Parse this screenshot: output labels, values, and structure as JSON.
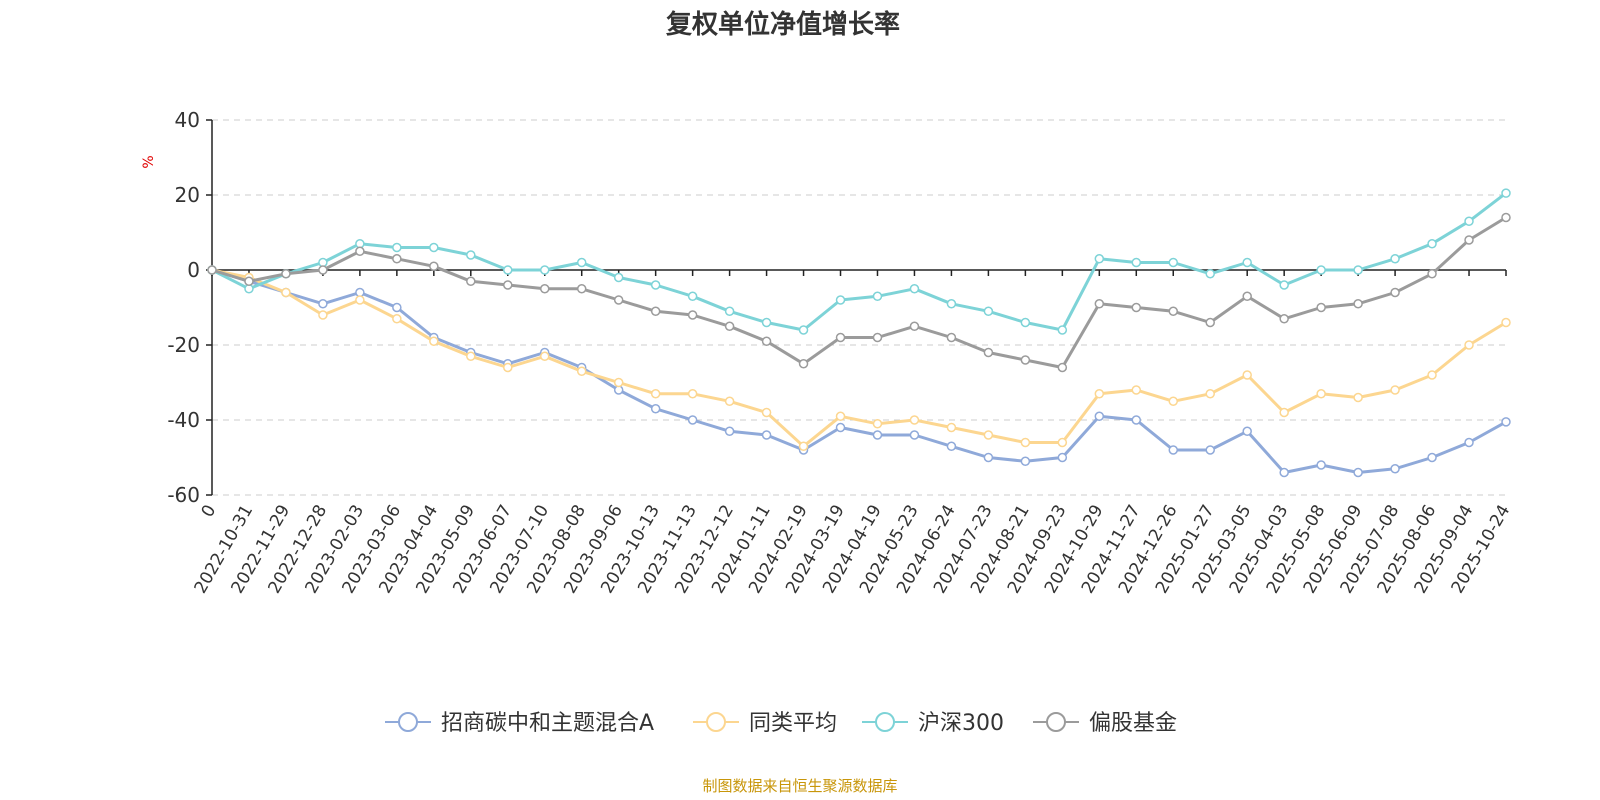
{
  "chart_data": {
    "type": "line",
    "title": "复权单位净值增长率",
    "ylabel": "%",
    "ylim": [
      -60,
      40
    ],
    "y_ticks": [
      "40",
      "20",
      "0",
      "-20",
      "-40",
      "-60"
    ],
    "x_tick_labels": [
      "0",
      "2022-10-31",
      "2022-11-29",
      "2022-12-28",
      "2023-02-03",
      "2023-03-06",
      "2023-04-04",
      "2023-05-09",
      "2023-06-07",
      "2023-07-10",
      "2023-08-08",
      "2023-09-06",
      "2023-10-13",
      "2023-11-13",
      "2023-12-12",
      "2024-01-11",
      "2024-02-19",
      "2024-03-19",
      "2024-04-19",
      "2024-05-23",
      "2024-06-24",
      "2024-07-23",
      "2024-08-21",
      "2024-09-23",
      "2024-10-29",
      "2024-11-27",
      "2024-12-26",
      "2025-01-27",
      "2025-03-05",
      "2025-04-03",
      "2025-05-08",
      "2025-06-09",
      "2025-07-08",
      "2025-08-06",
      "2025-09-04",
      "2025-10-24"
    ],
    "series": [
      {
        "name": "招商碳中和主题混合A",
        "color": "#8fa9d9",
        "values": [
          0,
          -3,
          -6,
          -9,
          -6,
          -10,
          -18,
          -22,
          -25,
          -22,
          -26,
          -32,
          -37,
          -40,
          -43,
          -44,
          -48,
          -42,
          -44,
          -44,
          -47,
          -50,
          -51,
          -50,
          -39,
          -40,
          -48,
          -48,
          -43,
          -54,
          -52,
          -54,
          -53,
          -50,
          -46,
          -40.5
        ]
      },
      {
        "name": "同类平均",
        "color": "#fcd690",
        "values": [
          0,
          -2,
          -6,
          -12,
          -8,
          -13,
          -19,
          -23,
          -26,
          -23,
          -27,
          -30,
          -33,
          -33,
          -35,
          -38,
          -47,
          -39,
          -41,
          -40,
          -42,
          -44,
          -46,
          -46,
          -33,
          -32,
          -35,
          -33,
          -28,
          -38,
          -33,
          -34,
          -32,
          -28,
          -20,
          -14
        ]
      },
      {
        "name": "沪深300",
        "color": "#7dd3d7",
        "values": [
          0,
          -5,
          -1,
          2,
          7,
          6,
          6,
          4,
          0,
          0,
          2,
          -2,
          -4,
          -7,
          -11,
          -14,
          -16,
          -8,
          -7,
          -5,
          -9,
          -11,
          -14,
          -16,
          3,
          2,
          2,
          -1,
          2,
          -4,
          0,
          0,
          3,
          7,
          13,
          20.5
        ]
      },
      {
        "name": "偏股基金",
        "color": "#9b9b9b",
        "values": [
          0,
          -3,
          -1,
          0,
          5,
          3,
          1,
          -3,
          -4,
          -5,
          -5,
          -8,
          -11,
          -12,
          -15,
          -19,
          -25,
          -18,
          -18,
          -15,
          -18,
          -22,
          -24,
          -26,
          -9,
          -10,
          -11,
          -14,
          -7,
          -13,
          -10,
          -9,
          -6,
          -1,
          8,
          14
        ]
      }
    ]
  },
  "legend": {
    "items": [
      "招商碳中和主题混合A",
      "同类平均",
      "沪深300",
      "偏股基金"
    ]
  },
  "footer": {
    "source": "制图数据来自恒生聚源数据库"
  }
}
